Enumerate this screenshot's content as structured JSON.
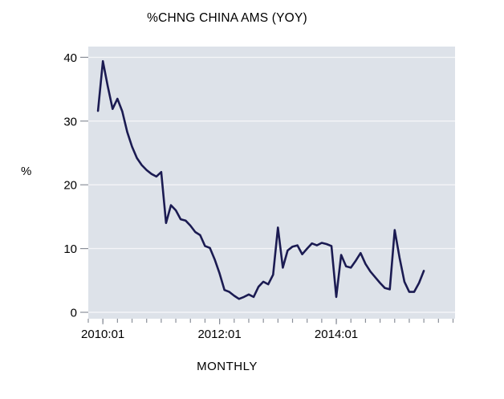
{
  "chart_data": {
    "type": "line",
    "title": "%CHNG CHINA AMS (YOY)",
    "xlabel": "MONTHLY",
    "ylabel": "%",
    "frequency": "monthly",
    "x": [
      "2009:12",
      "2010:01",
      "2010:02",
      "2010:03",
      "2010:04",
      "2010:05",
      "2010:06",
      "2010:07",
      "2010:08",
      "2010:09",
      "2010:10",
      "2010:11",
      "2010:12",
      "2011:01",
      "2011:02",
      "2011:03",
      "2011:04",
      "2011:05",
      "2011:06",
      "2011:07",
      "2011:08",
      "2011:09",
      "2011:10",
      "2011:11",
      "2011:12",
      "2012:01",
      "2012:02",
      "2012:03",
      "2012:04",
      "2012:05",
      "2012:06",
      "2012:07",
      "2012:08",
      "2012:09",
      "2012:10",
      "2012:11",
      "2012:12",
      "2013:01",
      "2013:02",
      "2013:03",
      "2013:04",
      "2013:05",
      "2013:06",
      "2013:07",
      "2013:08",
      "2013:09",
      "2013:10",
      "2013:11",
      "2013:12",
      "2014:01",
      "2014:02",
      "2014:03",
      "2014:04",
      "2014:05",
      "2014:06",
      "2014:07",
      "2014:08",
      "2014:09",
      "2014:10",
      "2014:11",
      "2014:12",
      "2015:01",
      "2015:02",
      "2015:03",
      "2015:04",
      "2015:05",
      "2015:06",
      "2015:07"
    ],
    "values": [
      31.6,
      39.4,
      35.5,
      31.9,
      33.5,
      31.5,
      28.3,
      26.0,
      24.2,
      23.1,
      22.3,
      21.7,
      21.3,
      22.0,
      14.0,
      16.8,
      16.0,
      14.6,
      14.4,
      13.6,
      12.6,
      12.1,
      10.4,
      10.1,
      8.3,
      6.1,
      3.5,
      3.2,
      2.6,
      2.1,
      2.4,
      2.8,
      2.4,
      4.0,
      4.8,
      4.4,
      5.9,
      13.3,
      7.0,
      9.7,
      10.3,
      10.5,
      9.1,
      10.0,
      10.8,
      10.5,
      10.9,
      10.7,
      10.4,
      2.4,
      9.0,
      7.2,
      7.0,
      8.1,
      9.3,
      7.6,
      6.4,
      5.5,
      4.6,
      3.8,
      3.6,
      12.9,
      8.6,
      4.8,
      3.2,
      3.2,
      4.6,
      6.5
    ],
    "x_major_tick_labels": [
      "2010:01",
      "2012:01",
      "2014:01"
    ],
    "y_ticks": [
      0,
      10,
      20,
      30,
      40
    ],
    "ylim": [
      -1.0,
      41.7
    ],
    "grid": "horizontal-white",
    "legend": "none",
    "colors": {
      "line": "#1b1b52",
      "plot_background": "#dde2e9",
      "gridline": "#f4f5f8",
      "tick": "#8a8f99",
      "text": "#000000",
      "page_background": "#ffffff"
    }
  }
}
